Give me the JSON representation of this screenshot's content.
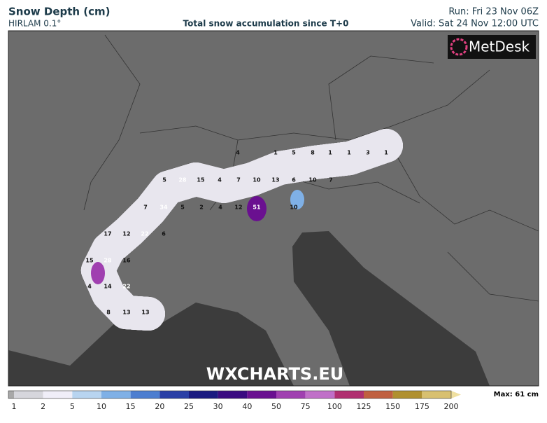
{
  "header": {
    "title": "Snow Depth (cm)",
    "model": "HIRLAM 0.1°",
    "subtitle": "Total snow accumulation since T+0",
    "run": "Run: Fri 23 Nov 06Z",
    "valid": "Valid: Sat 24 Nov 12:00 UTC"
  },
  "logo": "MetDesk",
  "watermark": "WXCHARTS.EU",
  "map_labels": [
    4,
    1,
    5,
    8,
    1,
    1,
    3,
    1,
    5,
    28,
    15,
    4,
    7,
    10,
    13,
    6,
    10,
    7,
    7,
    34,
    5,
    2,
    4,
    12,
    51,
    10,
    17,
    12,
    22,
    6,
    15,
    28,
    16,
    4,
    14,
    22,
    8,
    13,
    13
  ],
  "legend": {
    "levels": [
      1,
      2,
      5,
      10,
      15,
      20,
      25,
      30,
      40,
      50,
      75,
      100,
      125,
      150,
      175,
      200
    ],
    "colors": [
      "#d6d6dc",
      "#f0eef8",
      "#b8d4f0",
      "#7fb0e6",
      "#4d7ed0",
      "#2a3fa6",
      "#1a1a80",
      "#3a0a80",
      "#6a1090",
      "#a040b0",
      "#c070c8",
      "#b03070",
      "#c06040",
      "#b09030",
      "#d8c070",
      "#f0e0a0"
    ],
    "max": "Max: 61 cm"
  }
}
